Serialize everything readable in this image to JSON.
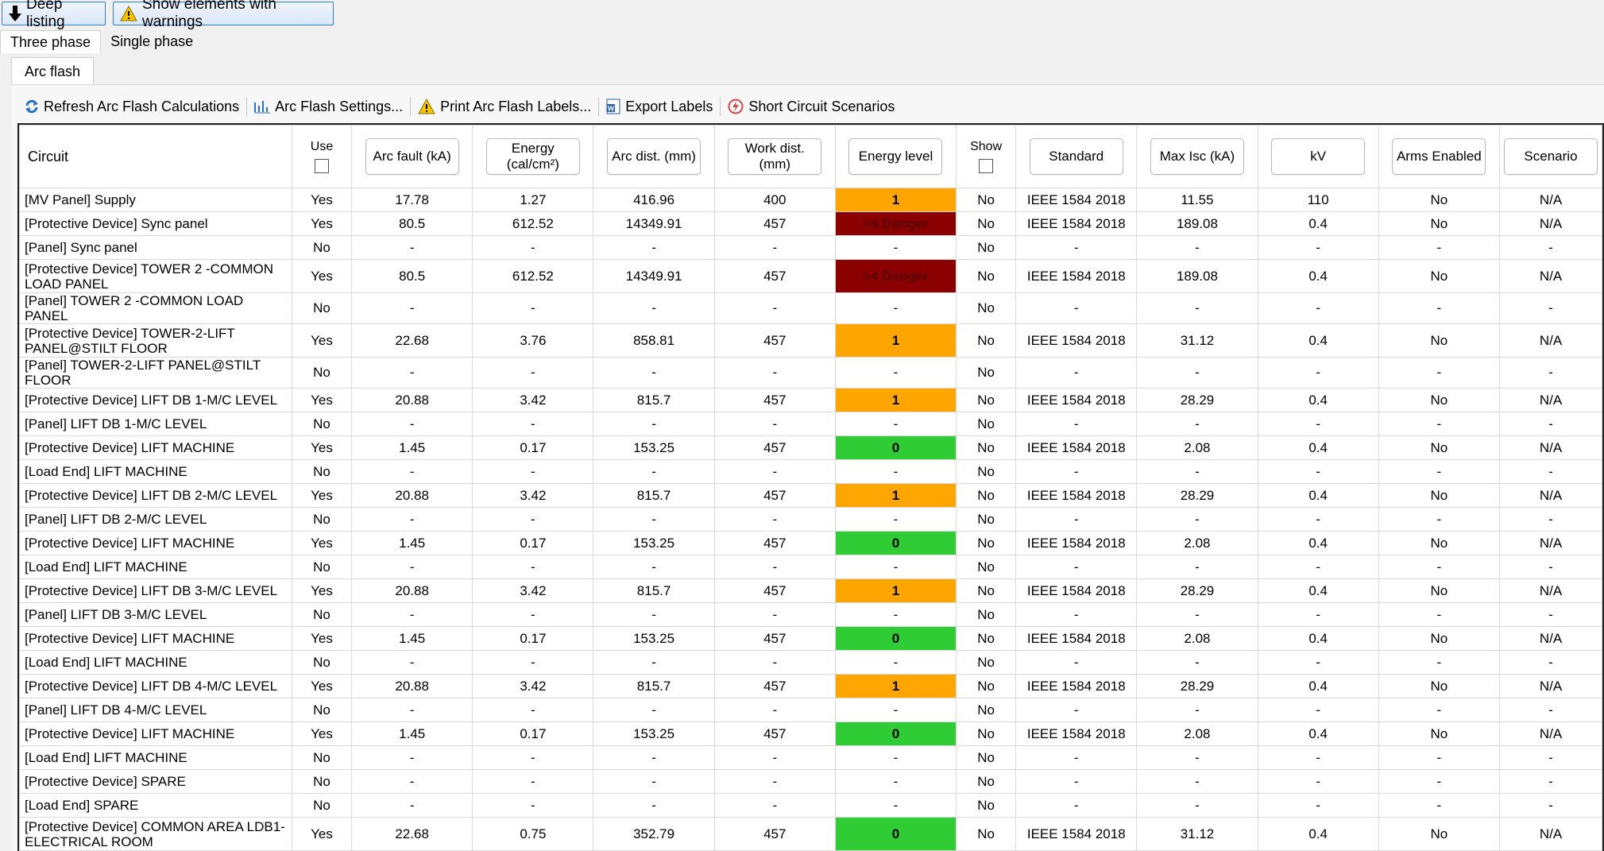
{
  "top_buttons": {
    "deep_listing": "Deep listing",
    "show_warnings": "Show elements with warnings"
  },
  "phase_tabs": [
    "Three phase",
    "Single phase"
  ],
  "sub_tab": "Arc flash",
  "toolbar": {
    "refresh": "Refresh Arc Flash Calculations",
    "settings": "Arc Flash Settings...",
    "print": "Print Arc Flash Labels...",
    "export": "Export Labels",
    "scenarios": "Short Circuit Scenarios"
  },
  "columns": {
    "circuit": "Circuit",
    "use": "Use",
    "arc_fault": "Arc fault (kA)",
    "energy": "Energy (cal/cm²)",
    "arc_dist": "Arc dist. (mm)",
    "work_dist": "Work dist. (mm)",
    "energy_level": "Energy level",
    "show": "Show",
    "standard": "Standard",
    "max_isc": "Max Isc (kA)",
    "kv": "kV",
    "arms": "Arms Enabled",
    "scenario": "Scenario"
  },
  "colors": {
    "level_1": "#ffa500",
    "level_0": "#2fcc35",
    "level_danger": "#8b0000"
  },
  "rows": [
    {
      "circuit": "[MV Panel] Supply",
      "use": "Yes",
      "arc_fault": "17.78",
      "energy": "1.27",
      "arc_dist": "416.96",
      "work_dist": "400",
      "level": "1",
      "show": "No",
      "standard": "IEEE 1584 2018",
      "max_isc": "11.55",
      "kv": "110",
      "arms": "No",
      "scenario": "N/A"
    },
    {
      "circuit": "[Protective Device] Sync panel",
      "use": "Yes",
      "arc_fault": "80.5",
      "energy": "612.52",
      "arc_dist": "14349.91",
      "work_dist": "457",
      "level": ">4 Danger",
      "show": "No",
      "standard": "IEEE 1584 2018",
      "max_isc": "189.08",
      "kv": "0.4",
      "arms": "No",
      "scenario": "N/A"
    },
    {
      "circuit": "[Panel] Sync panel",
      "use": "No",
      "arc_fault": "-",
      "energy": "-",
      "arc_dist": "-",
      "work_dist": "-",
      "level": "-",
      "show": "No",
      "standard": "-",
      "max_isc": "-",
      "kv": "-",
      "arms": "-",
      "scenario": "-"
    },
    {
      "circuit": "[Protective Device] TOWER 2 -COMMON LOAD PANEL",
      "use": "Yes",
      "arc_fault": "80.5",
      "energy": "612.52",
      "arc_dist": "14349.91",
      "work_dist": "457",
      "level": ">4 Danger",
      "show": "No",
      "standard": "IEEE 1584 2018",
      "max_isc": "189.08",
      "kv": "0.4",
      "arms": "No",
      "scenario": "N/A"
    },
    {
      "circuit": "[Panel] TOWER 2 -COMMON LOAD PANEL",
      "use": "No",
      "arc_fault": "-",
      "energy": "-",
      "arc_dist": "-",
      "work_dist": "-",
      "level": "-",
      "show": "No",
      "standard": "-",
      "max_isc": "-",
      "kv": "-",
      "arms": "-",
      "scenario": "-"
    },
    {
      "circuit": "[Protective Device] TOWER-2-LIFT PANEL@STILT FLOOR",
      "use": "Yes",
      "arc_fault": "22.68",
      "energy": "3.76",
      "arc_dist": "858.81",
      "work_dist": "457",
      "level": "1",
      "show": "No",
      "standard": "IEEE 1584 2018",
      "max_isc": "31.12",
      "kv": "0.4",
      "arms": "No",
      "scenario": "N/A"
    },
    {
      "circuit": "[Panel] TOWER-2-LIFT PANEL@STILT FLOOR",
      "use": "No",
      "arc_fault": "-",
      "energy": "-",
      "arc_dist": "-",
      "work_dist": "-",
      "level": "-",
      "show": "No",
      "standard": "-",
      "max_isc": "-",
      "kv": "-",
      "arms": "-",
      "scenario": "-"
    },
    {
      "circuit": "[Protective Device] LIFT DB 1-M/C LEVEL",
      "use": "Yes",
      "arc_fault": "20.88",
      "energy": "3.42",
      "arc_dist": "815.7",
      "work_dist": "457",
      "level": "1",
      "show": "No",
      "standard": "IEEE 1584 2018",
      "max_isc": "28.29",
      "kv": "0.4",
      "arms": "No",
      "scenario": "N/A"
    },
    {
      "circuit": "[Panel] LIFT DB 1-M/C LEVEL",
      "use": "No",
      "arc_fault": "-",
      "energy": "-",
      "arc_dist": "-",
      "work_dist": "-",
      "level": "-",
      "show": "No",
      "standard": "-",
      "max_isc": "-",
      "kv": "-",
      "arms": "-",
      "scenario": "-"
    },
    {
      "circuit": "[Protective Device] LIFT MACHINE",
      "use": "Yes",
      "arc_fault": "1.45",
      "energy": "0.17",
      "arc_dist": "153.25",
      "work_dist": "457",
      "level": "0",
      "show": "No",
      "standard": "IEEE 1584 2018",
      "max_isc": "2.08",
      "kv": "0.4",
      "arms": "No",
      "scenario": "N/A"
    },
    {
      "circuit": "[Load End] LIFT MACHINE",
      "use": "No",
      "arc_fault": "-",
      "energy": "-",
      "arc_dist": "-",
      "work_dist": "-",
      "level": "-",
      "show": "No",
      "standard": "-",
      "max_isc": "-",
      "kv": "-",
      "arms": "-",
      "scenario": "-"
    },
    {
      "circuit": "[Protective Device] LIFT DB 2-M/C LEVEL",
      "use": "Yes",
      "arc_fault": "20.88",
      "energy": "3.42",
      "arc_dist": "815.7",
      "work_dist": "457",
      "level": "1",
      "show": "No",
      "standard": "IEEE 1584 2018",
      "max_isc": "28.29",
      "kv": "0.4",
      "arms": "No",
      "scenario": "N/A"
    },
    {
      "circuit": "[Panel] LIFT DB 2-M/C LEVEL",
      "use": "No",
      "arc_fault": "-",
      "energy": "-",
      "arc_dist": "-",
      "work_dist": "-",
      "level": "-",
      "show": "No",
      "standard": "-",
      "max_isc": "-",
      "kv": "-",
      "arms": "-",
      "scenario": "-"
    },
    {
      "circuit": "[Protective Device] LIFT MACHINE",
      "use": "Yes",
      "arc_fault": "1.45",
      "energy": "0.17",
      "arc_dist": "153.25",
      "work_dist": "457",
      "level": "0",
      "show": "No",
      "standard": "IEEE 1584 2018",
      "max_isc": "2.08",
      "kv": "0.4",
      "arms": "No",
      "scenario": "N/A"
    },
    {
      "circuit": "[Load End] LIFT MACHINE",
      "use": "No",
      "arc_fault": "-",
      "energy": "-",
      "arc_dist": "-",
      "work_dist": "-",
      "level": "-",
      "show": "No",
      "standard": "-",
      "max_isc": "-",
      "kv": "-",
      "arms": "-",
      "scenario": "-"
    },
    {
      "circuit": "[Protective Device] LIFT DB 3-M/C LEVEL",
      "use": "Yes",
      "arc_fault": "20.88",
      "energy": "3.42",
      "arc_dist": "815.7",
      "work_dist": "457",
      "level": "1",
      "show": "No",
      "standard": "IEEE 1584 2018",
      "max_isc": "28.29",
      "kv": "0.4",
      "arms": "No",
      "scenario": "N/A"
    },
    {
      "circuit": "[Panel] LIFT DB 3-M/C LEVEL",
      "use": "No",
      "arc_fault": "-",
      "energy": "-",
      "arc_dist": "-",
      "work_dist": "-",
      "level": "-",
      "show": "No",
      "standard": "-",
      "max_isc": "-",
      "kv": "-",
      "arms": "-",
      "scenario": "-"
    },
    {
      "circuit": "[Protective Device] LIFT MACHINE",
      "use": "Yes",
      "arc_fault": "1.45",
      "energy": "0.17",
      "arc_dist": "153.25",
      "work_dist": "457",
      "level": "0",
      "show": "No",
      "standard": "IEEE 1584 2018",
      "max_isc": "2.08",
      "kv": "0.4",
      "arms": "No",
      "scenario": "N/A"
    },
    {
      "circuit": "[Load End] LIFT MACHINE",
      "use": "No",
      "arc_fault": "-",
      "energy": "-",
      "arc_dist": "-",
      "work_dist": "-",
      "level": "-",
      "show": "No",
      "standard": "-",
      "max_isc": "-",
      "kv": "-",
      "arms": "-",
      "scenario": "-"
    },
    {
      "circuit": "[Protective Device] LIFT DB 4-M/C LEVEL",
      "use": "Yes",
      "arc_fault": "20.88",
      "energy": "3.42",
      "arc_dist": "815.7",
      "work_dist": "457",
      "level": "1",
      "show": "No",
      "standard": "IEEE 1584 2018",
      "max_isc": "28.29",
      "kv": "0.4",
      "arms": "No",
      "scenario": "N/A"
    },
    {
      "circuit": "[Panel] LIFT DB 4-M/C LEVEL",
      "use": "No",
      "arc_fault": "-",
      "energy": "-",
      "arc_dist": "-",
      "work_dist": "-",
      "level": "-",
      "show": "No",
      "standard": "-",
      "max_isc": "-",
      "kv": "-",
      "arms": "-",
      "scenario": "-"
    },
    {
      "circuit": "[Protective Device] LIFT MACHINE",
      "use": "Yes",
      "arc_fault": "1.45",
      "energy": "0.17",
      "arc_dist": "153.25",
      "work_dist": "457",
      "level": "0",
      "show": "No",
      "standard": "IEEE 1584 2018",
      "max_isc": "2.08",
      "kv": "0.4",
      "arms": "No",
      "scenario": "N/A"
    },
    {
      "circuit": "[Load End] LIFT MACHINE",
      "use": "No",
      "arc_fault": "-",
      "energy": "-",
      "arc_dist": "-",
      "work_dist": "-",
      "level": "-",
      "show": "No",
      "standard": "-",
      "max_isc": "-",
      "kv": "-",
      "arms": "-",
      "scenario": "-"
    },
    {
      "circuit": "[Protective Device] SPARE",
      "use": "No",
      "arc_fault": "-",
      "energy": "-",
      "arc_dist": "-",
      "work_dist": "-",
      "level": "-",
      "show": "No",
      "standard": "-",
      "max_isc": "-",
      "kv": "-",
      "arms": "-",
      "scenario": "-"
    },
    {
      "circuit": "[Load End] SPARE",
      "use": "No",
      "arc_fault": "-",
      "energy": "-",
      "arc_dist": "-",
      "work_dist": "-",
      "level": "-",
      "show": "No",
      "standard": "-",
      "max_isc": "-",
      "kv": "-",
      "arms": "-",
      "scenario": "-"
    },
    {
      "circuit": "[Protective Device] COMMON AREA LDB1-ELECTRICAL ROOM",
      "use": "Yes",
      "arc_fault": "22.68",
      "energy": "0.75",
      "arc_dist": "352.79",
      "work_dist": "457",
      "level": "0",
      "show": "No",
      "standard": "IEEE 1584 2018",
      "max_isc": "31.12",
      "kv": "0.4",
      "arms": "No",
      "scenario": "N/A"
    }
  ]
}
